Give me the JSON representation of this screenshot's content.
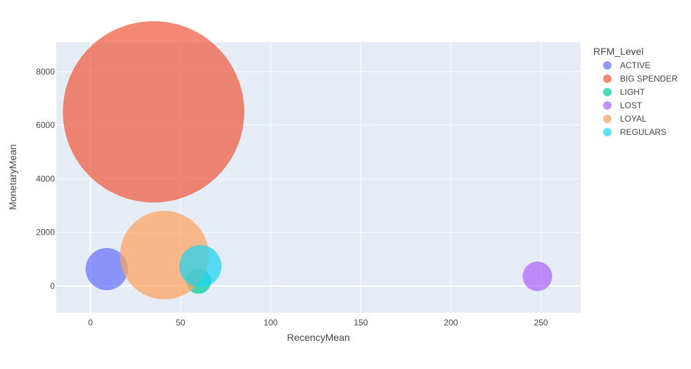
{
  "chart_data": {
    "type": "scatter",
    "title": "",
    "xlabel": "RecencyMean",
    "ylabel": "MonetaryMean",
    "xlim": [
      -19,
      272
    ],
    "ylim": [
      -1000,
      9100
    ],
    "x_ticks": [
      0,
      50,
      100,
      150,
      200,
      250
    ],
    "y_ticks": [
      0,
      2000,
      4000,
      6000,
      8000
    ],
    "grid": true,
    "legend_title": "RFM_Level",
    "legend_position": "right",
    "series": [
      {
        "name": "ACTIVE",
        "color": "#636efa",
        "x": 9,
        "y": 630,
        "size_label": 1.0
      },
      {
        "name": "BIG SPENDER",
        "color": "#ef553b",
        "x": 35,
        "y": 6500,
        "size_label": 4.3
      },
      {
        "name": "LIGHT",
        "color": "#00cc96",
        "x": 60,
        "y": 180,
        "size_label": 0.6
      },
      {
        "name": "LOST",
        "color": "#ab63fa",
        "x": 248,
        "y": 360,
        "size_label": 0.7
      },
      {
        "name": "LOYAL",
        "color": "#ffa15a",
        "x": 41,
        "y": 1150,
        "size_label": 2.1
      },
      {
        "name": "REGULARS",
        "color": "#19d3f3",
        "x": 61,
        "y": 740,
        "size_label": 1.0
      }
    ]
  }
}
